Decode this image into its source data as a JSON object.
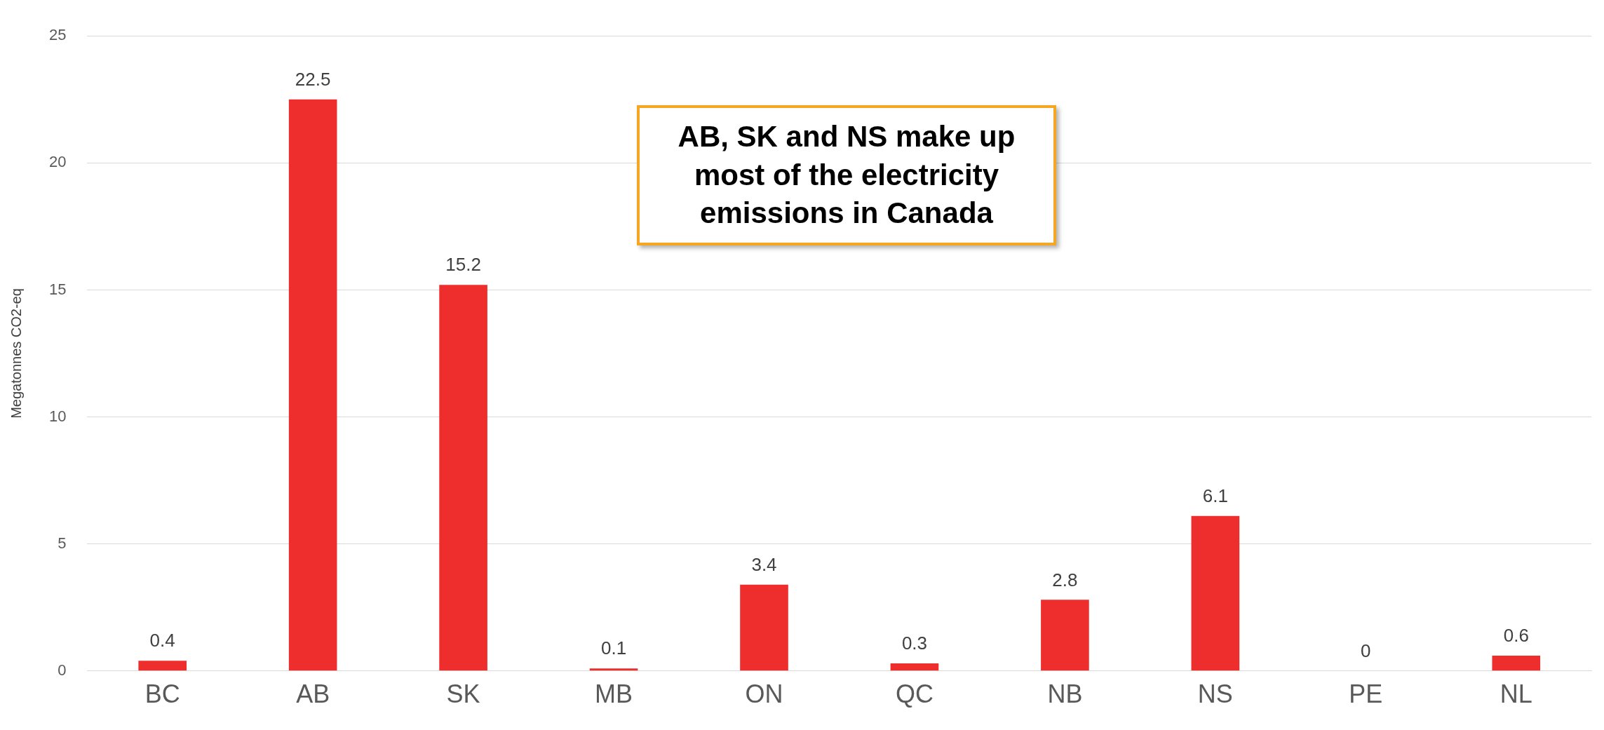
{
  "chart_data": {
    "type": "bar",
    "ylabel": "Megatonnes CO2-eq",
    "categories": [
      "BC",
      "AB",
      "SK",
      "MB",
      "ON",
      "QC",
      "NB",
      "NS",
      "PE",
      "NL"
    ],
    "values": [
      0.4,
      22.5,
      15.2,
      0.1,
      3.4,
      0.3,
      2.8,
      6.1,
      0,
      0.6
    ],
    "color": "#ee2d2d",
    "ylim": [
      0,
      25
    ],
    "yticks": [
      0,
      5,
      10,
      15,
      20,
      25
    ],
    "grid": "y",
    "legend": false,
    "data_labels": true,
    "annotations": [
      "AB, SK and NS make up most of the electricity emissions in Canada"
    ]
  }
}
